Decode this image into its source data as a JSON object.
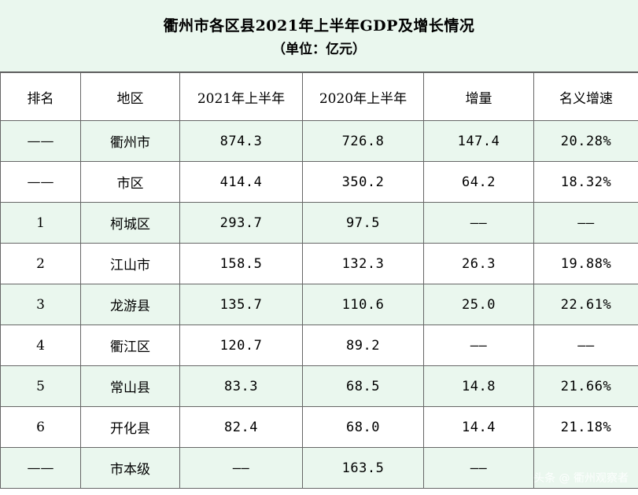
{
  "title": "衢州市各区县2021年上半年GDP及增长情况",
  "subtitle": "（单位：亿元）",
  "headers": [
    "排名",
    "地区",
    "2021年上半年",
    "2020年上半年",
    "增量",
    "名义增速"
  ],
  "rows": [
    {
      "rank": "——",
      "region": "衢州市",
      "y2021": "874.3",
      "y2020": "726.8",
      "increase": "147.4",
      "growth": "20.28%"
    },
    {
      "rank": "——",
      "region": "市区",
      "y2021": "414.4",
      "y2020": "350.2",
      "increase": "64.2",
      "growth": "18.32%"
    },
    {
      "rank": "1",
      "region": "柯城区",
      "y2021": "293.7",
      "y2020": "97.5",
      "increase": "——",
      "growth": "——"
    },
    {
      "rank": "2",
      "region": "江山市",
      "y2021": "158.5",
      "y2020": "132.3",
      "increase": "26.3",
      "growth": "19.88%"
    },
    {
      "rank": "3",
      "region": "龙游县",
      "y2021": "135.7",
      "y2020": "110.6",
      "increase": "25.0",
      "growth": "22.61%"
    },
    {
      "rank": "4",
      "region": "衢江区",
      "y2021": "120.7",
      "y2020": "89.2",
      "increase": "——",
      "growth": "——"
    },
    {
      "rank": "5",
      "region": "常山县",
      "y2021": "83.3",
      "y2020": "68.5",
      "increase": "14.8",
      "growth": "21.66%"
    },
    {
      "rank": "6",
      "region": "开化县",
      "y2021": "82.4",
      "y2020": "68.0",
      "increase": "14.4",
      "growth": "21.18%"
    },
    {
      "rank": "——",
      "region": "市本级",
      "y2021": "——",
      "y2020": "163.5",
      "increase": "——",
      "growth": ""
    }
  ],
  "watermark": "头条 @ 衢州观察者"
}
